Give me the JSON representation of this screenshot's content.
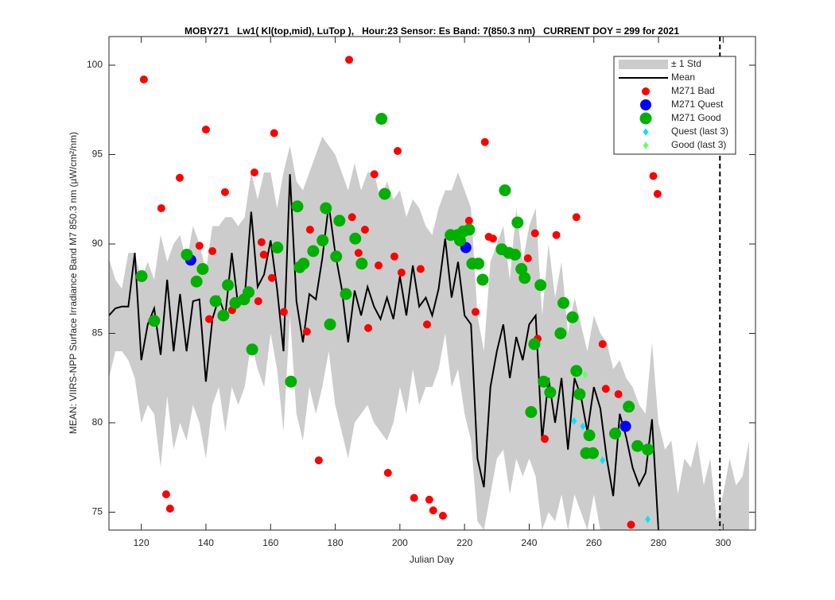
{
  "chart_data": {
    "type": "scatter",
    "title": "MOBY271   Lw1( Kl(top,mid), LuTop ),   Hour:23 Sensor: Es Band: 7(850.3 nm)   CURRENT DOY = 299 for 2021",
    "xlabel": "Julian Day",
    "ylabel": "MEAN: VIIRS-NPP Surface Irradiance Band M7 850.3 nm (µW/cm²/nm)",
    "xlim": [
      110,
      310
    ],
    "ylim": [
      74,
      101.6
    ],
    "xticks": [
      120,
      140,
      160,
      180,
      200,
      220,
      240,
      260,
      280,
      300
    ],
    "yticks": [
      75,
      80,
      85,
      90,
      95,
      100
    ],
    "legend": "upper right",
    "current_doy": 299,
    "x": [
      110,
      112,
      114,
      116,
      118,
      120,
      122,
      124,
      126,
      128,
      130,
      132,
      134,
      136,
      138,
      140,
      142,
      144,
      146,
      148,
      150,
      152,
      154,
      156,
      158,
      160,
      162,
      164,
      166,
      168,
      170,
      172,
      174,
      176,
      178,
      180,
      182,
      184,
      186,
      188,
      190,
      192,
      194,
      196,
      198,
      200,
      202,
      204,
      206,
      208,
      210,
      212,
      214,
      216,
      218,
      220,
      222,
      224,
      226,
      228,
      230,
      232,
      234,
      236,
      238,
      240,
      242,
      244,
      246,
      248,
      250,
      252,
      254,
      256,
      258,
      260,
      262,
      264,
      266,
      268,
      270,
      272,
      274,
      276,
      278,
      280,
      282,
      284,
      286,
      288,
      290,
      292,
      294,
      296,
      298,
      300,
      302,
      304,
      306,
      308
    ],
    "std": {
      "name": "± 1 Std",
      "color": "#cccccc",
      "upper": [
        89.2,
        88,
        87.5,
        89.5,
        89.5,
        88,
        89,
        88,
        90.5,
        89,
        90,
        90.5,
        89,
        91,
        90,
        88.5,
        91,
        91,
        91.5,
        91.5,
        91,
        91.5,
        94,
        92.5,
        94,
        94,
        92,
        94,
        95.5,
        93.5,
        93,
        94,
        95,
        96,
        95.5,
        95,
        94,
        93,
        94.5,
        93,
        94,
        94,
        92.5,
        93.5,
        92.5,
        93,
        91.5,
        92.5,
        92,
        91,
        90.5,
        92,
        93,
        93,
        94,
        93,
        92,
        86,
        84,
        89,
        90,
        91,
        88,
        92,
        89,
        91,
        92,
        86,
        90,
        87,
        89,
        85,
        87,
        85.5,
        84,
        86,
        85,
        84.5,
        83,
        83.5,
        82.5,
        82,
        81,
        80.5,
        84.5,
        80,
        78.5,
        79,
        76,
        78,
        77.5,
        79,
        76.5,
        78,
        74.5,
        76,
        78,
        76.5,
        77,
        79
      ],
      "lower": [
        82.5,
        84,
        84,
        83.5,
        82.5,
        80,
        81,
        80.5,
        77.5,
        81.5,
        78.5,
        80,
        79,
        81,
        80,
        78,
        81,
        82,
        79.5,
        82,
        81,
        82,
        84.5,
        83,
        82,
        85,
        83,
        79.5,
        86,
        80.5,
        79,
        82,
        80.5,
        82,
        84,
        81,
        79.5,
        78,
        80,
        80.5,
        81,
        80,
        79.5,
        79,
        80,
        82,
        80.5,
        83,
        81,
        82,
        82,
        83,
        85,
        82,
        83,
        80.5,
        79,
        74.5,
        74,
        76,
        78,
        78.5,
        76,
        78,
        77,
        78,
        77,
        74,
        75,
        74.5,
        76,
        74,
        76,
        75,
        74,
        76,
        74,
        73,
        73,
        73,
        73,
        73,
        73,
        73,
        73,
        73,
        73,
        73,
        73,
        73,
        73,
        73,
        73,
        73,
        73,
        73,
        73,
        73,
        73,
        73
      ]
    },
    "mean": {
      "name": "Mean",
      "color": "#000000",
      "values": [
        86.0,
        86.4,
        86.5,
        86.5,
        89.5,
        83.5,
        85.5,
        86.4,
        83.8,
        88.0,
        84.0,
        87.2,
        84.0,
        86.8,
        86.9,
        82.3,
        85.8,
        87.0,
        86.0,
        89.5,
        86.5,
        87.0,
        91.8,
        87.6,
        88.3,
        90.2,
        87.5,
        84.0,
        93.9,
        86.8,
        84.5,
        87.2,
        86.9,
        89.2,
        92.2,
        89.5,
        87.5,
        84.5,
        87.4,
        86.0,
        87.6,
        86.5,
        85.8,
        87.0,
        85.8,
        88.2,
        86.0,
        88.8,
        86.5,
        87.0,
        86.0,
        87.5,
        90.3,
        87.0,
        89.0,
        86.0,
        85.5,
        78.0,
        76.4,
        82.0,
        84.0,
        85.5,
        82.5,
        84.8,
        83.5,
        85.5,
        86.0,
        79.0,
        82.5,
        80.0,
        82.5,
        78.5,
        82.5,
        81.5,
        79.5,
        82.0,
        80.8,
        78.0,
        75.9,
        80.5,
        79.2,
        77.5,
        76.5,
        77.2,
        80.2,
        74.0,
        null,
        null,
        null,
        null,
        null,
        null,
        null,
        null,
        null,
        null,
        null,
        null,
        null,
        null
      ]
    },
    "series": [
      {
        "name": "M271 Bad",
        "color": "#ff0000",
        "marker": "circle",
        "size": 4.5,
        "x": [
          120.8,
          126.2,
          131.9,
          140,
          184.3,
          161.1,
          155,
          145.9,
          192.1,
          199.3,
          226.3,
          278.4,
          279.7,
          254.6,
          221.4,
          185.2,
          189.2,
          172.2,
          138,
          142,
          157.2,
          157.9,
          160.4,
          187.2,
          193.4,
          198.3,
          200.5,
          206.4,
          227.5,
          228.8,
          241.8,
          239.6,
          248.4,
          141,
          156.2,
          164.1,
          171.2,
          151.3,
          148.1,
          190.2,
          208.4,
          223.4,
          242.6,
          262.7,
          263.7,
          267.6,
          244.8,
          174.9,
          196.3,
          127.7,
          128.9,
          204.4,
          209.1,
          210.3,
          213.3,
          271.5
        ],
        "values": [
          99.2,
          92.0,
          93.7,
          96.4,
          100.3,
          96.2,
          94.0,
          92.9,
          93.9,
          95.2,
          95.7,
          93.8,
          92.8,
          91.5,
          91.3,
          91.5,
          90.8,
          90.8,
          89.9,
          89.6,
          90.1,
          89.4,
          88.1,
          89.5,
          88.8,
          89.3,
          88.4,
          88.6,
          90.4,
          90.3,
          90.6,
          89.2,
          90.5,
          85.8,
          86.8,
          86.2,
          85.1,
          86.9,
          86.3,
          85.3,
          85.5,
          86.2,
          84.7,
          84.4,
          81.9,
          81.6,
          79.1,
          77.9,
          77.2,
          76.0,
          75.2,
          75.8,
          75.7,
          75.1,
          74.8,
          74.3
        ]
      },
      {
        "name": "M271 Quest",
        "color": "#0000ff",
        "marker": "circle",
        "size": 6.5,
        "x": [
          135.3,
          220.4,
          269.8
        ],
        "values": [
          89.1,
          89.8,
          79.8
        ]
      },
      {
        "name": "M271 Good",
        "color": "#00b000",
        "marker": "circle",
        "size": 7,
        "x": [
          120.1,
          124,
          134.1,
          137.1,
          139,
          143,
          145.4,
          146.8,
          149.1,
          151.8,
          153.2,
          154.3,
          162.1,
          166.3,
          168.3,
          169,
          170.2,
          173.2,
          176.1,
          177.1,
          178.4,
          180.3,
          181.3,
          183.3,
          186.2,
          188.2,
          194.3,
          195.3,
          215.7,
          217.9,
          218.6,
          219.6,
          221.4,
          222.4,
          224.3,
          225.6,
          232.5,
          231.5,
          233.7,
          235.6,
          236.4,
          237.6,
          238.6,
          240.6,
          241.6,
          243.5,
          244.5,
          246.5,
          249.7,
          250.6,
          253.4,
          254.6,
          255.6,
          257.6,
          258.6,
          259.7,
          266.6,
          270.8,
          273.5,
          276.7
        ],
        "values": [
          88.2,
          85.7,
          89.4,
          87.9,
          88.6,
          86.8,
          86.0,
          87.7,
          86.7,
          86.9,
          87.3,
          84.1,
          89.8,
          82.3,
          92.1,
          88.7,
          88.9,
          89.6,
          90.2,
          92.0,
          85.5,
          89.3,
          91.3,
          87.2,
          90.3,
          88.9,
          97.0,
          92.8,
          90.5,
          90.5,
          90.2,
          90.7,
          90.8,
          88.9,
          88.9,
          88.0,
          93.0,
          89.7,
          89.5,
          89.4,
          91.2,
          88.6,
          88.1,
          80.6,
          84.4,
          87.7,
          82.3,
          81.7,
          85.0,
          86.7,
          85.9,
          82.9,
          81.6,
          78.3,
          79.3,
          78.3,
          79.4,
          80.9,
          78.7,
          78.5
        ]
      },
      {
        "name": "Quest (last 3)",
        "color": "#00e5ff",
        "marker": "diamond",
        "size": 4,
        "x": [
          253.9,
          256.6,
          262.7,
          276.7
        ],
        "values": [
          80.1,
          79.8,
          77.9,
          74.6
        ]
      },
      {
        "name": "Good (last 3)",
        "color": "#66ff66",
        "marker": "diamond",
        "size": 4,
        "x": [
          257.3
        ],
        "values": [
          82.7
        ]
      }
    ]
  }
}
